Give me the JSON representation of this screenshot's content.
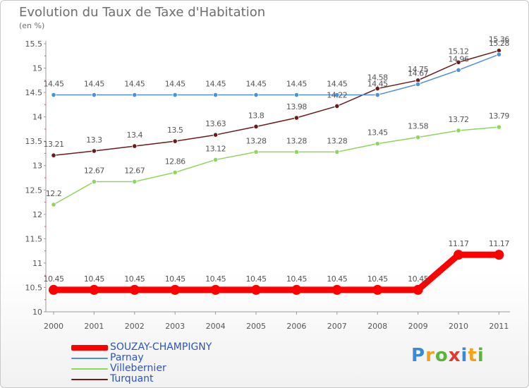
{
  "chart_data": {
    "type": "line",
    "title": "Evolution du Taux de Taxe d'Habitation",
    "subtitle": "(en %)",
    "categories": [
      "2000",
      "2001",
      "2002",
      "2003",
      "2004",
      "2005",
      "2006",
      "2007",
      "2008",
      "2009",
      "2010",
      "2011"
    ],
    "ylim": [
      10,
      15.5
    ],
    "yticks": [
      "10",
      "10.5",
      "11",
      "11.5",
      "12",
      "12.5",
      "13",
      "13.5",
      "14",
      "14.5",
      "15",
      "15.5"
    ],
    "grid": false,
    "legend_position": "bottom-left",
    "series": [
      {
        "name": "SOUZAY-CHAMPIGNY",
        "color": "#ff0000",
        "values": [
          10.45,
          10.45,
          10.45,
          10.45,
          10.45,
          10.45,
          10.45,
          10.45,
          10.45,
          10.45,
          11.17,
          11.17
        ],
        "labels": [
          "10.45",
          "10.45",
          "10.45",
          "10.45",
          "10.45",
          "10.45",
          "10.45",
          "10.45",
          "10.45",
          "10.45",
          "11.17",
          "11.17"
        ]
      },
      {
        "name": "Parnay",
        "color": "#4f8fd6",
        "values": [
          14.45,
          14.45,
          14.45,
          14.45,
          14.45,
          14.45,
          14.45,
          14.45,
          14.45,
          14.67,
          14.96,
          15.28
        ],
        "labels": [
          "14.45",
          "14.45",
          "14.45",
          "14.45",
          "14.45",
          "14.45",
          "14.45",
          "14.45",
          "14.45",
          "14.67",
          "14.96",
          "15.28"
        ]
      },
      {
        "name": "Villebernier",
        "color": "#8ed65c",
        "values": [
          12.2,
          12.67,
          12.67,
          12.86,
          13.12,
          13.28,
          13.28,
          13.28,
          13.45,
          13.58,
          13.72,
          13.79
        ],
        "labels": [
          "12.2",
          "12.67",
          "12.67",
          "12.86",
          "13.12",
          "13.28",
          "13.28",
          "13.28",
          "13.45",
          "13.58",
          "13.72",
          "13.79"
        ]
      },
      {
        "name": "Turquant",
        "color": "#6b1a1a",
        "values": [
          13.21,
          13.3,
          13.4,
          13.5,
          13.63,
          13.8,
          13.98,
          14.22,
          14.58,
          14.75,
          15.12,
          15.36
        ],
        "labels": [
          "13.21",
          "13.3",
          "13.4",
          "13.5",
          "13.63",
          "13.8",
          "13.98",
          "14.22",
          "14.58",
          "14.75",
          "15.12",
          "15.36"
        ]
      }
    ]
  },
  "logo": {
    "letters": [
      "P",
      "r",
      "o",
      "x",
      "i",
      "t",
      "i"
    ]
  }
}
